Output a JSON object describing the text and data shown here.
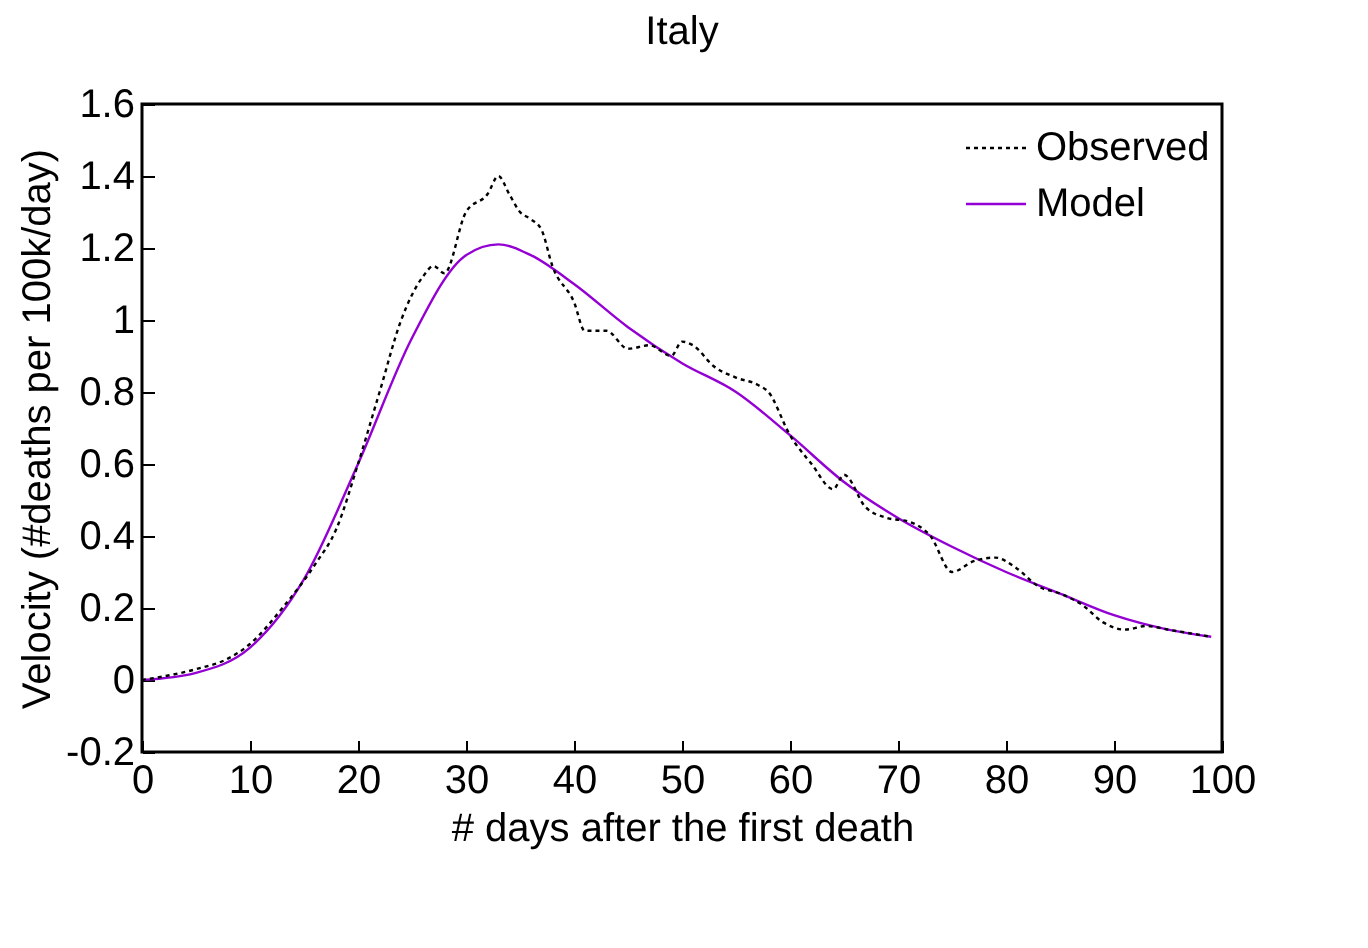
{
  "chart_data": {
    "type": "line",
    "title": "Italy",
    "xlabel": "# days after the first death",
    "ylabel": "Velocity (#deaths per 100k/day)",
    "xlim": [
      0,
      100
    ],
    "xticks": [
      0,
      10,
      20,
      30,
      40,
      50,
      60,
      70,
      80,
      90,
      100
    ],
    "ylim": [
      -0.2,
      1.6
    ],
    "yticks": [
      -0.2,
      0,
      0.2,
      0.4,
      0.6,
      0.8,
      1,
      1.2,
      1.4,
      1.6
    ],
    "grid": false,
    "legend": "top right",
    "marker": "none",
    "series": [
      {
        "name": "Observed",
        "color": "#000000",
        "line_style": "dotted",
        "x": [
          0,
          2,
          5,
          8,
          10,
          13,
          16,
          18,
          20,
          22,
          24,
          26,
          27,
          28,
          30,
          32,
          33,
          34,
          35,
          36,
          37,
          38,
          40,
          41,
          43,
          45,
          47,
          49,
          50,
          51,
          53,
          55,
          57,
          58,
          60,
          62,
          64,
          65,
          67,
          69,
          71,
          73,
          75,
          77,
          79,
          81,
          83,
          85,
          87,
          89,
          91,
          93,
          95,
          97,
          99
        ],
        "values": [
          0,
          0.01,
          0.03,
          0.06,
          0.1,
          0.2,
          0.32,
          0.42,
          0.6,
          0.8,
          1.0,
          1.12,
          1.15,
          1.13,
          1.3,
          1.35,
          1.4,
          1.35,
          1.3,
          1.28,
          1.25,
          1.15,
          1.05,
          0.97,
          0.97,
          0.92,
          0.93,
          0.9,
          0.94,
          0.93,
          0.87,
          0.84,
          0.82,
          0.8,
          0.68,
          0.6,
          0.53,
          0.57,
          0.48,
          0.45,
          0.44,
          0.4,
          0.3,
          0.33,
          0.34,
          0.31,
          0.26,
          0.24,
          0.21,
          0.16,
          0.14,
          0.15,
          0.14,
          0.13,
          0.12
        ]
      },
      {
        "name": "Model",
        "color": "#9400d3",
        "line_style": "solid",
        "x": [
          0,
          5,
          10,
          15,
          20,
          25,
          30,
          33,
          36,
          40,
          45,
          50,
          55,
          60,
          65,
          70,
          75,
          80,
          85,
          90,
          95,
          99
        ],
        "values": [
          0,
          0.02,
          0.09,
          0.28,
          0.6,
          0.95,
          1.18,
          1.21,
          1.18,
          1.1,
          0.98,
          0.88,
          0.8,
          0.68,
          0.55,
          0.45,
          0.37,
          0.3,
          0.24,
          0.18,
          0.14,
          0.12
        ]
      }
    ]
  }
}
